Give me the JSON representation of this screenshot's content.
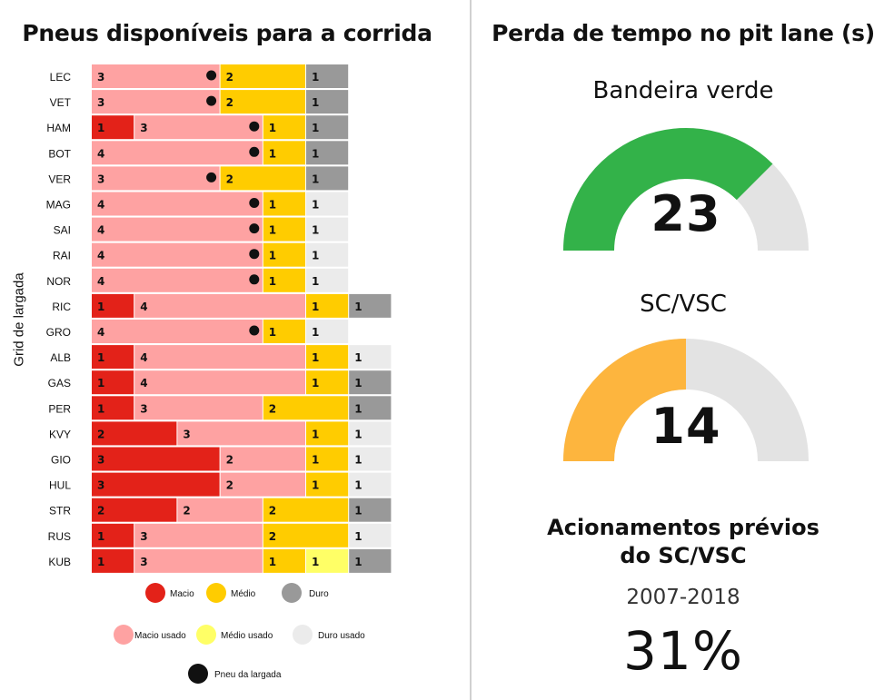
{
  "colors": {
    "macio": "#e32219",
    "medio": "#ffcc00",
    "duro": "#999999",
    "macio_usado": "#fea2a2",
    "medio_usado": "#ffff66",
    "duro_usado": "#ebebeb",
    "gauge_green": "#33b249",
    "gauge_orange": "#fdb53e",
    "gauge_track": "#e3e3e3"
  },
  "left": {
    "title": "Pneus disponíveis para a corrida",
    "axis_label": "Grid de largada"
  },
  "chart_data": {
    "type": "bar",
    "orientation": "horizontal-stacked",
    "title": "Pneus disponíveis para a corrida",
    "ylabel": "Grid de largada",
    "legend": [
      {
        "key": "macio",
        "label": "Macio"
      },
      {
        "key": "medio",
        "label": "Médio"
      },
      {
        "key": "duro",
        "label": "Duro"
      },
      {
        "key": "macio_usado",
        "label": "Macio usado"
      },
      {
        "key": "medio_usado",
        "label": "Médio usado"
      },
      {
        "key": "duro_usado",
        "label": "Duro usado"
      },
      {
        "key": "start",
        "label": "Pneu da largada"
      }
    ],
    "drivers": [
      {
        "name": "LEC",
        "segments": [
          [
            "macio_usado",
            3
          ],
          [
            "medio",
            2
          ],
          [
            "duro",
            1
          ]
        ],
        "start_after": 0
      },
      {
        "name": "VET",
        "segments": [
          [
            "macio_usado",
            3
          ],
          [
            "medio",
            2
          ],
          [
            "duro",
            1
          ]
        ],
        "start_after": 0
      },
      {
        "name": "HAM",
        "segments": [
          [
            "macio",
            1
          ],
          [
            "macio_usado",
            3
          ],
          [
            "medio",
            1
          ],
          [
            "duro",
            1
          ]
        ],
        "start_after": 1
      },
      {
        "name": "BOT",
        "segments": [
          [
            "macio_usado",
            4
          ],
          [
            "medio",
            1
          ],
          [
            "duro",
            1
          ]
        ],
        "start_after": 0
      },
      {
        "name": "VER",
        "segments": [
          [
            "macio_usado",
            3
          ],
          [
            "medio",
            2
          ],
          [
            "duro",
            1
          ]
        ],
        "start_after": 0
      },
      {
        "name": "MAG",
        "segments": [
          [
            "macio_usado",
            4
          ],
          [
            "medio",
            1
          ],
          [
            "duro_usado",
            1
          ]
        ],
        "start_after": 0
      },
      {
        "name": "SAI",
        "segments": [
          [
            "macio_usado",
            4
          ],
          [
            "medio",
            1
          ],
          [
            "duro_usado",
            1
          ]
        ],
        "start_after": 0
      },
      {
        "name": "RAI",
        "segments": [
          [
            "macio_usado",
            4
          ],
          [
            "medio",
            1
          ],
          [
            "duro_usado",
            1
          ]
        ],
        "start_after": 0
      },
      {
        "name": "NOR",
        "segments": [
          [
            "macio_usado",
            4
          ],
          [
            "medio",
            1
          ],
          [
            "duro_usado",
            1
          ]
        ],
        "start_after": 0
      },
      {
        "name": "RIC",
        "segments": [
          [
            "macio",
            1
          ],
          [
            "macio_usado",
            4
          ],
          [
            "medio",
            1
          ],
          [
            "duro",
            1
          ]
        ],
        "start_after": null
      },
      {
        "name": "GRO",
        "segments": [
          [
            "macio_usado",
            4
          ],
          [
            "medio",
            1
          ],
          [
            "duro_usado",
            1
          ]
        ],
        "start_after": 0
      },
      {
        "name": "ALB",
        "segments": [
          [
            "macio",
            1
          ],
          [
            "macio_usado",
            4
          ],
          [
            "medio",
            1
          ],
          [
            "duro_usado",
            1
          ]
        ],
        "start_after": null
      },
      {
        "name": "GAS",
        "segments": [
          [
            "macio",
            1
          ],
          [
            "macio_usado",
            4
          ],
          [
            "medio",
            1
          ],
          [
            "duro",
            1
          ]
        ],
        "start_after": null
      },
      {
        "name": "PER",
        "segments": [
          [
            "macio",
            1
          ],
          [
            "macio_usado",
            3
          ],
          [
            "medio",
            2
          ],
          [
            "duro",
            1
          ]
        ],
        "start_after": null
      },
      {
        "name": "KVY",
        "segments": [
          [
            "macio",
            2
          ],
          [
            "macio_usado",
            3
          ],
          [
            "medio",
            1
          ],
          [
            "duro_usado",
            1
          ]
        ],
        "start_after": null
      },
      {
        "name": "GIO",
        "segments": [
          [
            "macio",
            3
          ],
          [
            "macio_usado",
            2
          ],
          [
            "medio",
            1
          ],
          [
            "duro_usado",
            1
          ]
        ],
        "start_after": null
      },
      {
        "name": "HUL",
        "segments": [
          [
            "macio",
            3
          ],
          [
            "macio_usado",
            2
          ],
          [
            "medio",
            1
          ],
          [
            "duro_usado",
            1
          ]
        ],
        "start_after": null
      },
      {
        "name": "STR",
        "segments": [
          [
            "macio",
            2
          ],
          [
            "macio_usado",
            2
          ],
          [
            "medio",
            2
          ],
          [
            "duro",
            1
          ]
        ],
        "start_after": null
      },
      {
        "name": "RUS",
        "segments": [
          [
            "macio",
            1
          ],
          [
            "macio_usado",
            3
          ],
          [
            "medio",
            2
          ],
          [
            "duro_usado",
            1
          ]
        ],
        "start_after": null
      },
      {
        "name": "KUB",
        "segments": [
          [
            "macio",
            1
          ],
          [
            "macio_usado",
            3
          ],
          [
            "medio",
            1
          ],
          [
            "medio_usado",
            1
          ],
          [
            "duro",
            1
          ]
        ],
        "start_after": null
      }
    ]
  },
  "right": {
    "title": "Perda de tempo no pit lane (s)",
    "green": {
      "label": "Bandeira verde",
      "value": "23",
      "fill": 0.75
    },
    "sc": {
      "label": "SC/VSC",
      "value": "14",
      "fill": 0.5
    },
    "previous": {
      "title_line1": "Acionamentos prévios",
      "title_line2": "do SC/VSC",
      "years": "2007-2018",
      "percent": "31%"
    }
  }
}
